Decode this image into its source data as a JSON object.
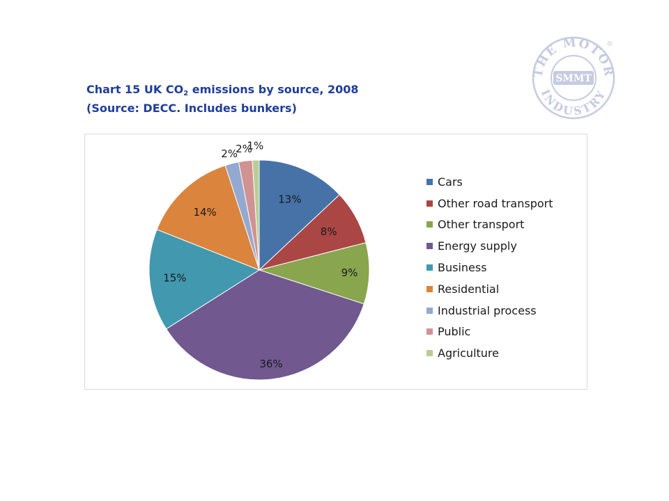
{
  "title": {
    "prefix": "Chart 15 UK CO",
    "subscript": "2",
    "suffix": " emissions by source, 2008",
    "line2": "(Source: DECC. Includes bunkers)"
  },
  "logo": {
    "top_text": "THE MOTOR",
    "center_text": "SMMT",
    "bottom_text": "INDUSTRY",
    "mark": "®"
  },
  "chart_data": {
    "type": "pie",
    "title": "Chart 15 UK CO2 emissions by source, 2008 (Source: DECC. Includes bunkers)",
    "legend_position": "right",
    "slices": [
      {
        "name": "Cars",
        "value": 13,
        "label": "13%",
        "color": "#4672a8"
      },
      {
        "name": "Other road transport",
        "value": 8,
        "label": "8%",
        "color": "#aa4644"
      },
      {
        "name": "Other transport",
        "value": 9,
        "label": "9%",
        "color": "#89a54e"
      },
      {
        "name": "Energy supply",
        "value": 36,
        "label": "36%",
        "color": "#71588f"
      },
      {
        "name": "Business",
        "value": 15,
        "label": "15%",
        "color": "#4198af"
      },
      {
        "name": "Residential",
        "value": 14,
        "label": "14%",
        "color": "#db843d"
      },
      {
        "name": "Industrial process",
        "value": 2,
        "label": "2%",
        "color": "#93a9cf"
      },
      {
        "name": "Public",
        "value": 2,
        "label": "2%",
        "color": "#d19392"
      },
      {
        "name": "Agriculture",
        "value": 1,
        "label": "1%",
        "color": "#b9cd96"
      }
    ]
  }
}
